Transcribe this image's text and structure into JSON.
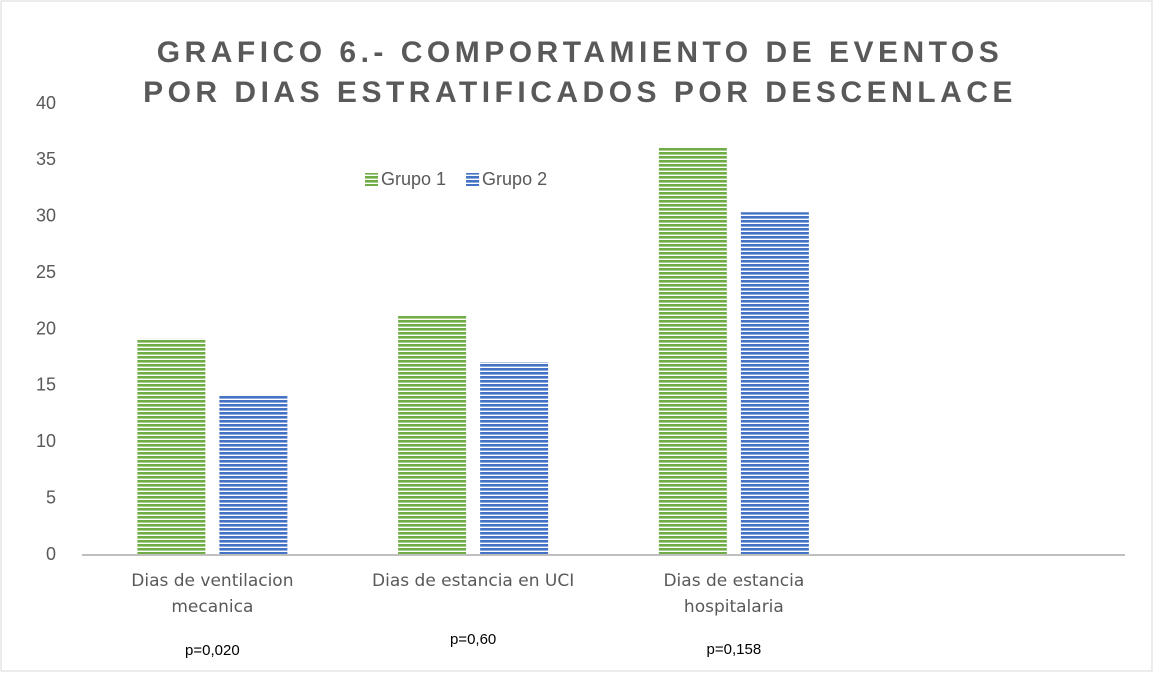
{
  "chart_data": {
    "type": "bar",
    "title": [
      "GRAFICO 6.- COMPORTAMIENTO DE EVENTOS",
      "POR DIAS ESTRATIFICADOS POR DESCENLACE"
    ],
    "categories": [
      "Dias de ventilacion mecanica",
      "Dias de estancia en UCI",
      "Dias de estancia hospitalaria",
      null
    ],
    "series": [
      {
        "name": "Grupo 1",
        "color": "#70ad47",
        "values": [
          19.2,
          21.2,
          36.2,
          null
        ]
      },
      {
        "name": "Grupo 2",
        "color": "#4472c4",
        "values": [
          14.1,
          17.1,
          30.4,
          null
        ]
      }
    ],
    "annotations": [
      "p=0,020",
      "p=0,60",
      "p=0,158"
    ],
    "ylim": [
      0,
      40
    ],
    "yticks": [
      0,
      5,
      10,
      15,
      20,
      25,
      30,
      35,
      40
    ],
    "grid": false
  }
}
